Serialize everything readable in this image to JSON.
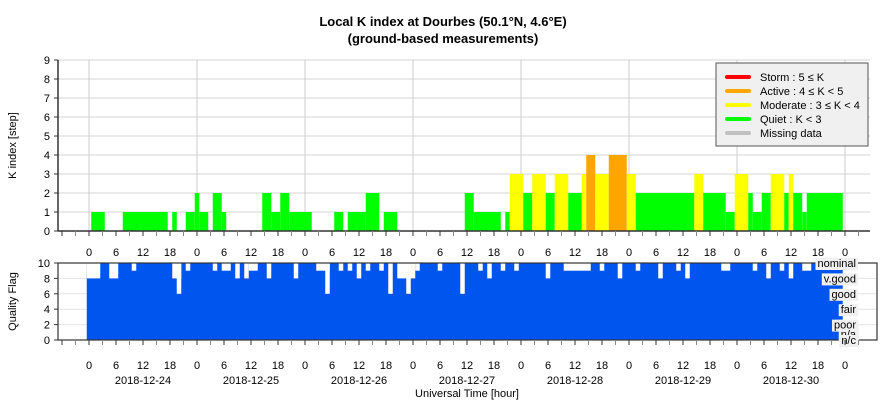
{
  "chart_data": [
    {
      "type": "bar",
      "title": "Local K index at Dourbes (50.1°N, 4.6°E)",
      "subtitle": "(ground-based measurements)",
      "ylabel": "K index [step]",
      "ylim": [
        0,
        9
      ],
      "yticks": [
        0,
        1,
        2,
        3,
        4,
        5,
        6,
        7,
        8,
        9
      ],
      "x_unit": "hours since 2018-12-24 00:00 UT",
      "xlim": [
        -7.3,
        174.5
      ],
      "hour_ticks": [
        "0",
        "6",
        "12",
        "18",
        "0",
        "6",
        "12",
        "18",
        "0",
        "6",
        "12",
        "18",
        "0",
        "6",
        "12",
        "18",
        "0",
        "6",
        "12",
        "18",
        "0",
        "6",
        "12",
        "18",
        "0",
        "6",
        "12",
        "18",
        "0"
      ],
      "grid": true,
      "legend_position": "top-right",
      "legend": [
        {
          "label": "Storm : 5 ≤ K",
          "color": "#ff0000"
        },
        {
          "label": "Active : 4 ≤ K < 5",
          "color": "#ffa500"
        },
        {
          "label": "Moderate : 3 ≤ K < 4",
          "color": "#ffff00"
        },
        {
          "label": "Quiet : K < 3",
          "color": "#00ff00"
        },
        {
          "label": "Missing data",
          "color": "#c0c0c0"
        }
      ],
      "series_runs_start_end_k": [
        [
          0.5,
          3.5,
          1
        ],
        [
          7.5,
          17.5,
          1
        ],
        [
          18.5,
          19.5,
          1
        ],
        [
          21.5,
          23.5,
          1
        ],
        [
          23.5,
          24.5,
          2
        ],
        [
          24.5,
          26.5,
          1
        ],
        [
          27.5,
          29.5,
          2
        ],
        [
          29.5,
          30.5,
          1
        ],
        [
          38.5,
          40.5,
          2
        ],
        [
          40.5,
          42.5,
          1
        ],
        [
          42.5,
          44.5,
          2
        ],
        [
          44.5,
          49.5,
          1
        ],
        [
          54.5,
          56.5,
          1
        ],
        [
          57.5,
          61.5,
          1
        ],
        [
          61.5,
          64.5,
          2
        ],
        [
          65.5,
          68.5,
          1
        ],
        [
          83.5,
          85.5,
          2
        ],
        [
          85.5,
          91.5,
          1
        ],
        [
          92.5,
          93.5,
          1
        ],
        [
          93.5,
          96.5,
          3
        ],
        [
          96.5,
          98.5,
          2
        ],
        [
          98.5,
          101.5,
          3
        ],
        [
          101.5,
          103.5,
          2
        ],
        [
          103.5,
          106.5,
          3
        ],
        [
          106.5,
          109.5,
          2
        ],
        [
          109.5,
          110.5,
          3
        ],
        [
          110.5,
          112.5,
          4
        ],
        [
          112.5,
          115.5,
          3
        ],
        [
          115.5,
          119.5,
          4
        ],
        [
          119.5,
          121.5,
          3
        ],
        [
          121.5,
          134.5,
          2
        ],
        [
          134.5,
          136.5,
          3
        ],
        [
          136.5,
          141.5,
          2
        ],
        [
          141.5,
          143.5,
          1
        ],
        [
          143.5,
          146.5,
          3
        ],
        [
          146.5,
          147.5,
          2
        ],
        [
          147.5,
          149.5,
          1
        ],
        [
          149.5,
          151.5,
          2
        ],
        [
          151.5,
          154.5,
          3
        ],
        [
          154.5,
          155.5,
          2
        ],
        [
          155.5,
          156.5,
          3
        ],
        [
          156.5,
          158.5,
          2
        ],
        [
          158.5,
          159.5,
          1
        ],
        [
          159.5,
          167.5,
          2
        ]
      ]
    },
    {
      "type": "bar",
      "ylabel": "Quality Flag",
      "xlabel": "Universal Time [hour]",
      "ylim": [
        0,
        10
      ],
      "yticks": [
        0,
        2,
        4,
        6,
        8,
        10
      ],
      "bar_color": "#0055ee",
      "data_range_hours": [
        -0.5,
        167.5
      ],
      "default_value": 10,
      "dips_start_end_value": [
        [
          -0.5,
          2.5,
          8
        ],
        [
          4.5,
          6.5,
          8
        ],
        [
          9.5,
          10.5,
          9
        ],
        [
          18.5,
          20.5,
          8
        ],
        [
          19.5,
          20.5,
          6
        ],
        [
          21.5,
          22.5,
          9
        ],
        [
          27.5,
          28.5,
          9
        ],
        [
          29.5,
          31.5,
          9
        ],
        [
          32.5,
          33.5,
          8
        ],
        [
          34.5,
          35.5,
          8
        ],
        [
          35.5,
          37.5,
          9
        ],
        [
          39.5,
          40.5,
          8
        ],
        [
          45.5,
          46.5,
          8
        ],
        [
          50.5,
          53.5,
          9
        ],
        [
          52.5,
          53.5,
          6
        ],
        [
          55.5,
          56.5,
          9
        ],
        [
          57.5,
          58.5,
          9
        ],
        [
          59.5,
          60.5,
          8
        ],
        [
          61.5,
          62.5,
          9
        ],
        [
          64.5,
          65.5,
          9
        ],
        [
          66.5,
          67.5,
          6
        ],
        [
          68.5,
          72.5,
          8
        ],
        [
          70.5,
          71.5,
          6
        ],
        [
          72.5,
          73.5,
          9
        ],
        [
          77.5,
          78.5,
          9
        ],
        [
          82.5,
          83.5,
          6
        ],
        [
          86.5,
          87.5,
          9
        ],
        [
          88.5,
          89.5,
          8
        ],
        [
          91.5,
          92.5,
          9
        ],
        [
          94.5,
          95.5,
          9
        ],
        [
          101.5,
          102.5,
          8
        ],
        [
          105.5,
          111.5,
          9
        ],
        [
          113.5,
          114.5,
          9
        ],
        [
          117.5,
          118.5,
          8
        ],
        [
          121.5,
          122.5,
          9
        ],
        [
          126.5,
          127.5,
          8
        ],
        [
          130.5,
          131.5,
          9
        ],
        [
          132.5,
          133.5,
          8
        ],
        [
          140.5,
          142.5,
          9
        ],
        [
          147.5,
          148.5,
          9
        ],
        [
          150.5,
          151.5,
          8
        ],
        [
          153.5,
          154.5,
          9
        ],
        [
          155.5,
          156.5,
          8
        ],
        [
          158.5,
          160.5,
          9
        ]
      ],
      "right_labels": [
        {
          "label": "nominal",
          "value": 10
        },
        {
          "label": "v.good",
          "value": 8
        },
        {
          "label": "good",
          "value": 6
        },
        {
          "label": "fair",
          "value": 4
        },
        {
          "label": "poor",
          "value": 2
        },
        {
          "label": "n/a",
          "value": 0.8
        },
        {
          "label": "n/c",
          "value": 0
        }
      ],
      "hour_ticks": [
        "0",
        "6",
        "12",
        "18",
        "0",
        "6",
        "12",
        "18",
        "0",
        "6",
        "12",
        "18",
        "0",
        "6",
        "12",
        "18",
        "0",
        "6",
        "12",
        "18",
        "0",
        "6",
        "12",
        "18",
        "0",
        "6",
        "12",
        "18",
        "0"
      ],
      "dates": [
        "2018-12-24",
        "2018-12-25",
        "2018-12-26",
        "2018-12-27",
        "2018-12-28",
        "2018-12-29",
        "2018-12-30"
      ]
    }
  ]
}
